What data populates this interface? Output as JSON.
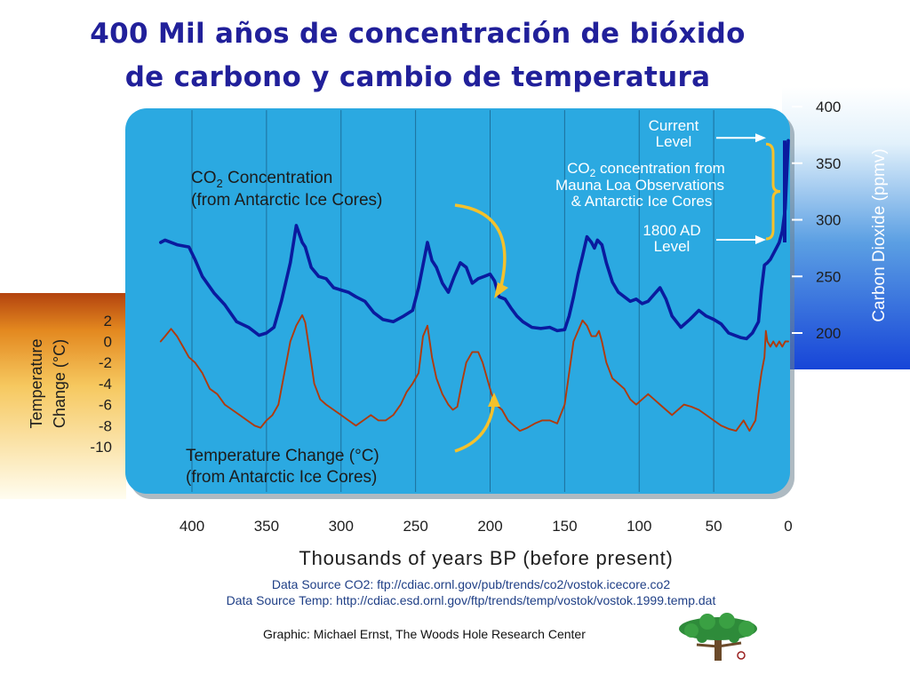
{
  "page": {
    "title_line1": "400 Mil años de concentración de bióxido",
    "title_line2": "de carbono y cambio de temperatura"
  },
  "chart_data": {
    "type": "line",
    "xlabel": "Thousands of years BP (before present)",
    "x_ticks": [
      400,
      350,
      300,
      250,
      200,
      150,
      100,
      50,
      0
    ],
    "xlim": [
      430,
      0
    ],
    "y_left": {
      "label": "Temperature Change (°C)",
      "label_line1": "Temperature",
      "label_line2": "Change (°C)",
      "ticks": [
        2,
        0,
        -2,
        -4,
        -6,
        -8,
        -10
      ],
      "range": [
        -10,
        2
      ]
    },
    "y_right": {
      "label": "Carbon Dioxide (ppmv)",
      "ticks": [
        400,
        350,
        300,
        250,
        200
      ],
      "range": [
        200,
        400
      ]
    },
    "series": [
      {
        "name": "CO2 Concentration",
        "axis": "right",
        "color": "#0a1a9e",
        "x": [
          421,
          418,
          410,
          402,
          398,
          393,
          385,
          378,
          370,
          362,
          355,
          350,
          345,
          340,
          334,
          330,
          326,
          324,
          320,
          315,
          310,
          305,
          300,
          295,
          290,
          284,
          278,
          272,
          265,
          258,
          252,
          248,
          245,
          242,
          239,
          236,
          232,
          228,
          224,
          220,
          216,
          212,
          208,
          204,
          200,
          197,
          194,
          190,
          186,
          182,
          178,
          172,
          166,
          160,
          155,
          150,
          147,
          144,
          141,
          138,
          135,
          132,
          130,
          128,
          125,
          122,
          118,
          114,
          110,
          106,
          102,
          98,
          94,
          90,
          86,
          82,
          78,
          72,
          66,
          60,
          55,
          50,
          45,
          40,
          36,
          32,
          28,
          24,
          20,
          18,
          16,
          14,
          12,
          10,
          8,
          6,
          4,
          2,
          0
        ],
        "values": [
          280,
          282,
          278,
          276,
          265,
          250,
          235,
          225,
          210,
          205,
          198,
          200,
          205,
          228,
          262,
          295,
          280,
          276,
          258,
          250,
          248,
          240,
          238,
          236,
          232,
          228,
          218,
          212,
          210,
          215,
          220,
          240,
          260,
          280,
          264,
          258,
          244,
          236,
          250,
          262,
          258,
          244,
          248,
          250,
          252,
          246,
          232,
          230,
          222,
          215,
          210,
          205,
          204,
          205,
          202,
          203,
          215,
          232,
          252,
          268,
          285,
          280,
          275,
          282,
          278,
          262,
          245,
          236,
          232,
          228,
          230,
          226,
          228,
          234,
          240,
          230,
          215,
          205,
          212,
          220,
          215,
          212,
          208,
          200,
          198,
          196,
          195,
          200,
          210,
          238,
          260,
          262,
          265,
          270,
          275,
          280,
          290,
          310,
          370
        ]
      },
      {
        "name": "Temperature Change",
        "axis": "left",
        "color": "#b03a0c",
        "x": [
          421,
          418,
          414,
          410,
          406,
          402,
          398,
          393,
          388,
          383,
          378,
          373,
          368,
          363,
          358,
          354,
          350,
          346,
          342,
          338,
          334,
          330,
          326,
          324,
          321,
          318,
          314,
          310,
          305,
          300,
          295,
          290,
          285,
          280,
          275,
          270,
          265,
          260,
          256,
          252,
          248,
          245,
          242,
          239,
          236,
          232,
          228,
          225,
          222,
          219,
          216,
          212,
          208,
          205,
          202,
          199,
          196,
          192,
          188,
          184,
          180,
          175,
          170,
          165,
          160,
          155,
          150,
          147,
          144,
          141,
          138,
          135,
          132,
          129,
          127,
          125,
          122,
          118,
          114,
          110,
          106,
          102,
          98,
          94,
          90,
          86,
          82,
          78,
          74,
          70,
          65,
          60,
          55,
          50,
          45,
          40,
          35,
          30,
          26,
          22,
          20,
          18,
          16,
          15,
          14,
          12,
          10,
          8,
          6,
          4,
          2,
          0
        ],
        "values": [
          0,
          0.5,
          1.2,
          0.5,
          -0.5,
          -1.5,
          -2,
          -3,
          -4.5,
          -5,
          -6,
          -6.5,
          -7,
          -7.5,
          -8,
          -8.2,
          -7.5,
          -7,
          -6,
          -3,
          0,
          1.5,
          2.5,
          1.8,
          -1,
          -4,
          -5.5,
          -6,
          -6.5,
          -7,
          -7.5,
          -8,
          -7.5,
          -7,
          -7.5,
          -7.5,
          -7,
          -6,
          -4.8,
          -4,
          -3,
          0.5,
          1.5,
          -1.5,
          -3.5,
          -5,
          -6,
          -6.5,
          -6.2,
          -4,
          -2,
          -1,
          -1,
          -2,
          -3.5,
          -5,
          -6,
          -6.5,
          -7.5,
          -8,
          -8.5,
          -8.2,
          -7.8,
          -7.5,
          -7.5,
          -7.8,
          -6,
          -3,
          0,
          1,
          2,
          1.5,
          0.5,
          0.5,
          1,
          0,
          -2,
          -3.5,
          -4,
          -4.5,
          -5.5,
          -6,
          -5.5,
          -5,
          -5.5,
          -6,
          -6.5,
          -7,
          -6.5,
          -6,
          -6.2,
          -6.5,
          -7,
          -7.5,
          -8,
          -8.3,
          -8.5,
          -7.5,
          -8.5,
          -7.5,
          -5,
          -3,
          -1.5,
          1,
          0,
          -0.5,
          0,
          -0.5,
          0,
          -0.5,
          0,
          0
        ]
      }
    ],
    "annotations": {
      "co2_label_line1_prefix": "CO",
      "co2_label_sub": "2",
      "co2_label_line1_suffix": " Concentration",
      "co2_label_line2": "(from Antarctic Ice Cores)",
      "temp_label_line1": "Temperature Change (°C)",
      "temp_label_line2": "(from Antarctic Ice Cores)",
      "current_level_line1": "Current",
      "current_level_line2": "Level",
      "mauna_line1_prefix": "CO",
      "mauna_line1_sub": "2",
      "mauna_line1_suffix": " concentration from",
      "mauna_line2": "Mauna Loa Observations",
      "mauna_line3": "& Antarctic Ice Cores",
      "ad1800_line1": "1800 AD",
      "ad1800_line2": "Level",
      "mauna_loa_range": [
        280,
        370
      ]
    },
    "colors": {
      "panel": "#2ba9e1",
      "co2_line": "#0a1a9e",
      "temp_line": "#b03a0c",
      "arrow": "#f5c12b",
      "annotation_text": "#ffffff",
      "axis_text": "#1e1e1e"
    }
  },
  "footer": {
    "source_co2": "Data Source CO2: ftp://cdiac.ornl.gov/pub/trends/co2/vostok.icecore.co2",
    "source_temp": "Data Source Temp: http://cdiac.esd.ornl.gov/ftp/trends/temp/vostok/vostok.1999.temp.dat",
    "credit": "Graphic: Michael Ernst, The Woods Hole Research Center",
    "logo_icon": "tree-logo-icon"
  }
}
